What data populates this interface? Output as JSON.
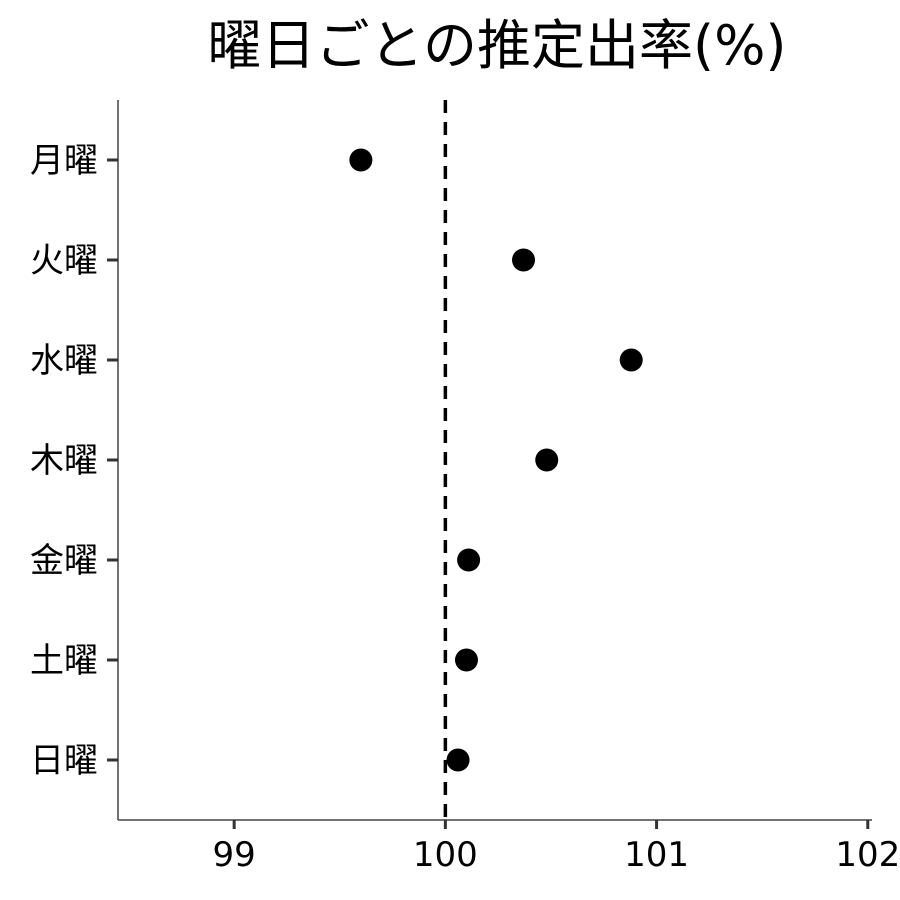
{
  "chart_data": {
    "type": "scatter",
    "title": "曜日ごとの推定出率(%)",
    "xlabel": "",
    "ylabel": "",
    "categories": [
      "月曜",
      "火曜",
      "水曜",
      "木曜",
      "金曜",
      "土曜",
      "日曜"
    ],
    "values": [
      99.6,
      100.37,
      100.88,
      100.48,
      100.11,
      100.1,
      100.06
    ],
    "xlim": [
      98.45,
      102.02
    ],
    "x_ticks": [
      99,
      100,
      101,
      102
    ],
    "x_tick_labels": [
      "99",
      "100",
      "101",
      "102"
    ],
    "reference_line": {
      "x": 100,
      "style": "dashed",
      "color": "#000000"
    },
    "grid": false,
    "legend": "none",
    "point_color": "#000000"
  }
}
